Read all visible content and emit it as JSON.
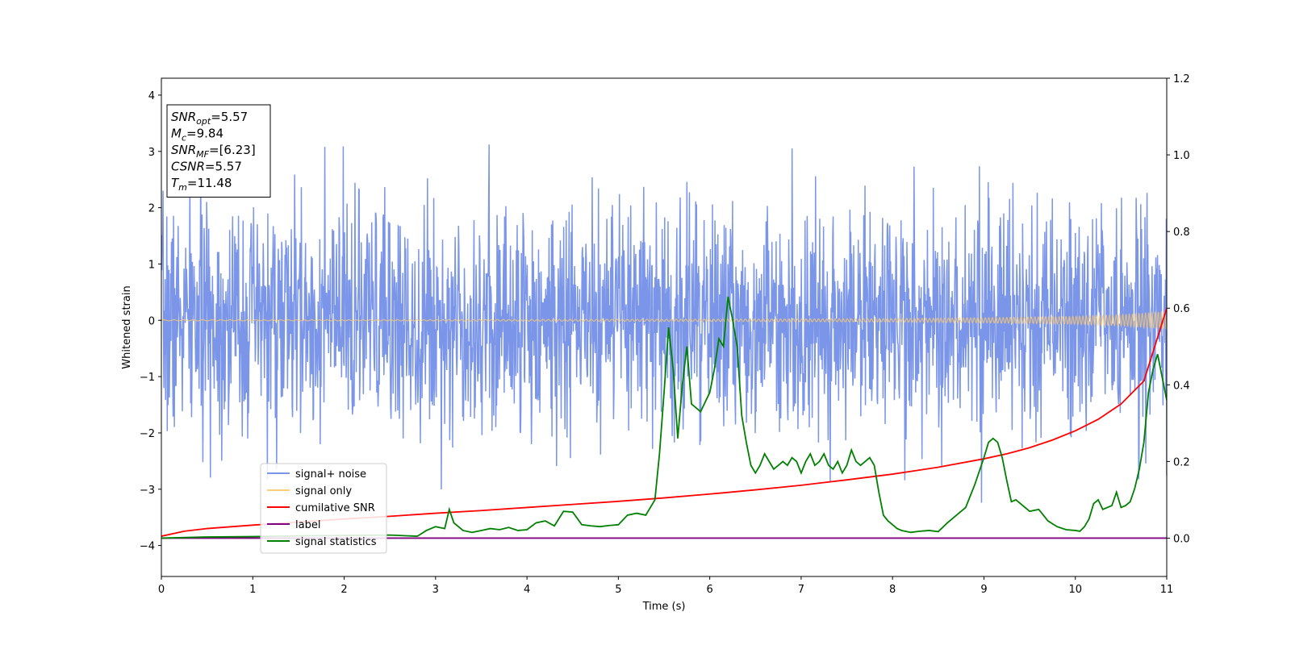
{
  "chart_data": {
    "type": "line",
    "title": "",
    "xlabel": "Time (s)",
    "ylabel": "Whitened strain",
    "ylabel_right": "",
    "xlim": [
      0,
      11
    ],
    "ylim": [
      -4.55,
      4.3
    ],
    "ylim_right": [
      -0.1,
      1.2
    ],
    "x_ticks": [
      0,
      1,
      2,
      3,
      4,
      5,
      6,
      7,
      8,
      9,
      10,
      11
    ],
    "y_ticks": [
      -4,
      -3,
      -2,
      -1,
      0,
      1,
      2,
      3,
      4
    ],
    "y_ticks_right": [
      0.0,
      0.2,
      0.4,
      0.6,
      0.8,
      1.0,
      1.2
    ],
    "y_ticks_right_labels": [
      "0.0",
      "0.2",
      "0.4",
      "0.6",
      "0.8",
      "1.0",
      "1.2"
    ],
    "grid": false,
    "legend_position": "lower-left",
    "annotation": {
      "lines": [
        {
          "main": "SNR",
          "sub": "opt",
          "value": "=5.57"
        },
        {
          "main": "M",
          "sub": "c",
          "value": "=9.84"
        },
        {
          "main": "SNR",
          "sub": "MF",
          "value": "=[6.23]"
        },
        {
          "main": "CSNR",
          "sub": "",
          "value": "=5.57"
        },
        {
          "main": "T",
          "sub": "m",
          "value": "=11.48"
        }
      ]
    },
    "series": [
      {
        "name": "signal+ noise",
        "axis": "left",
        "color": "#7b96e8",
        "style": "noise",
        "n_points": 2400,
        "std": 1.0,
        "seed": 7
      },
      {
        "name": "signal only",
        "axis": "left",
        "color": "#ffc96b",
        "style": "chirp",
        "x": [
          0,
          2,
          4,
          6,
          8,
          9,
          10,
          10.5,
          11
        ],
        "amplitude": [
          0.01,
          0.01,
          0.015,
          0.02,
          0.03,
          0.045,
          0.07,
          0.1,
          0.16
        ]
      },
      {
        "name": "cumilative SNR",
        "axis": "right",
        "color": "#ff0000",
        "style": "line",
        "x": [
          0,
          0.25,
          0.5,
          1,
          1.5,
          2,
          2.5,
          3,
          3.5,
          4,
          4.5,
          5,
          5.5,
          6,
          6.5,
          7,
          7.5,
          8,
          8.5,
          9,
          9.25,
          9.5,
          9.75,
          10,
          10.25,
          10.5,
          10.75,
          11
        ],
        "y": [
          0.005,
          0.018,
          0.025,
          0.034,
          0.042,
          0.05,
          0.057,
          0.065,
          0.072,
          0.08,
          0.088,
          0.096,
          0.105,
          0.115,
          0.126,
          0.138,
          0.152,
          0.167,
          0.185,
          0.207,
          0.22,
          0.236,
          0.256,
          0.28,
          0.31,
          0.35,
          0.41,
          0.6
        ]
      },
      {
        "name": "label",
        "axis": "right",
        "color": "#800080",
        "style": "line",
        "x": [
          0,
          11
        ],
        "y": [
          0.0,
          0.0
        ]
      },
      {
        "name": "signal statistics",
        "axis": "right",
        "color": "#008000",
        "style": "line",
        "x": [
          0,
          0.5,
          1,
          1.5,
          2,
          2.5,
          2.8,
          2.9,
          3.0,
          3.1,
          3.15,
          3.2,
          3.3,
          3.4,
          3.5,
          3.6,
          3.7,
          3.8,
          3.9,
          4.0,
          4.1,
          4.2,
          4.3,
          4.4,
          4.5,
          4.6,
          4.7,
          4.8,
          4.9,
          5.0,
          5.1,
          5.2,
          5.3,
          5.4,
          5.45,
          5.5,
          5.55,
          5.6,
          5.65,
          5.7,
          5.75,
          5.8,
          5.85,
          5.9,
          6.0,
          6.05,
          6.1,
          6.15,
          6.2,
          6.25,
          6.3,
          6.35,
          6.4,
          6.45,
          6.5,
          6.55,
          6.6,
          6.7,
          6.8,
          6.85,
          6.9,
          6.95,
          7.0,
          7.05,
          7.1,
          7.15,
          7.2,
          7.25,
          7.3,
          7.35,
          7.4,
          7.45,
          7.5,
          7.55,
          7.6,
          7.65,
          7.7,
          7.75,
          7.8,
          7.85,
          7.9,
          7.95,
          8.0,
          8.05,
          8.1,
          8.2,
          8.3,
          8.4,
          8.5,
          8.6,
          8.7,
          8.8,
          8.9,
          9.0,
          9.05,
          9.1,
          9.15,
          9.2,
          9.25,
          9.3,
          9.35,
          9.4,
          9.5,
          9.6,
          9.7,
          9.8,
          9.9,
          10.0,
          10.05,
          10.1,
          10.15,
          10.2,
          10.25,
          10.3,
          10.35,
          10.4,
          10.45,
          10.5,
          10.55,
          10.6,
          10.65,
          10.7,
          10.75,
          10.8,
          10.85,
          10.9,
          10.95,
          11.0
        ],
        "y": [
          0.0,
          0.003,
          0.004,
          0.006,
          0.007,
          0.008,
          0.005,
          0.02,
          0.03,
          0.025,
          0.075,
          0.04,
          0.02,
          0.015,
          0.02,
          0.025,
          0.022,
          0.028,
          0.02,
          0.022,
          0.04,
          0.045,
          0.032,
          0.07,
          0.068,
          0.035,
          0.032,
          0.03,
          0.033,
          0.035,
          0.06,
          0.065,
          0.06,
          0.1,
          0.22,
          0.38,
          0.55,
          0.44,
          0.26,
          0.4,
          0.5,
          0.35,
          0.34,
          0.33,
          0.38,
          0.44,
          0.52,
          0.5,
          0.63,
          0.57,
          0.5,
          0.32,
          0.25,
          0.19,
          0.17,
          0.19,
          0.22,
          0.18,
          0.2,
          0.19,
          0.21,
          0.2,
          0.17,
          0.2,
          0.22,
          0.19,
          0.2,
          0.22,
          0.19,
          0.18,
          0.2,
          0.17,
          0.19,
          0.23,
          0.2,
          0.19,
          0.2,
          0.21,
          0.19,
          0.12,
          0.06,
          0.045,
          0.035,
          0.025,
          0.02,
          0.015,
          0.018,
          0.02,
          0.017,
          0.04,
          0.06,
          0.08,
          0.14,
          0.21,
          0.25,
          0.26,
          0.25,
          0.21,
          0.15,
          0.095,
          0.1,
          0.09,
          0.07,
          0.075,
          0.045,
          0.03,
          0.022,
          0.02,
          0.018,
          0.03,
          0.05,
          0.09,
          0.1,
          0.075,
          0.08,
          0.085,
          0.12,
          0.08,
          0.085,
          0.095,
          0.13,
          0.18,
          0.25,
          0.38,
          0.44,
          0.48,
          0.42,
          0.36
        ]
      }
    ]
  }
}
